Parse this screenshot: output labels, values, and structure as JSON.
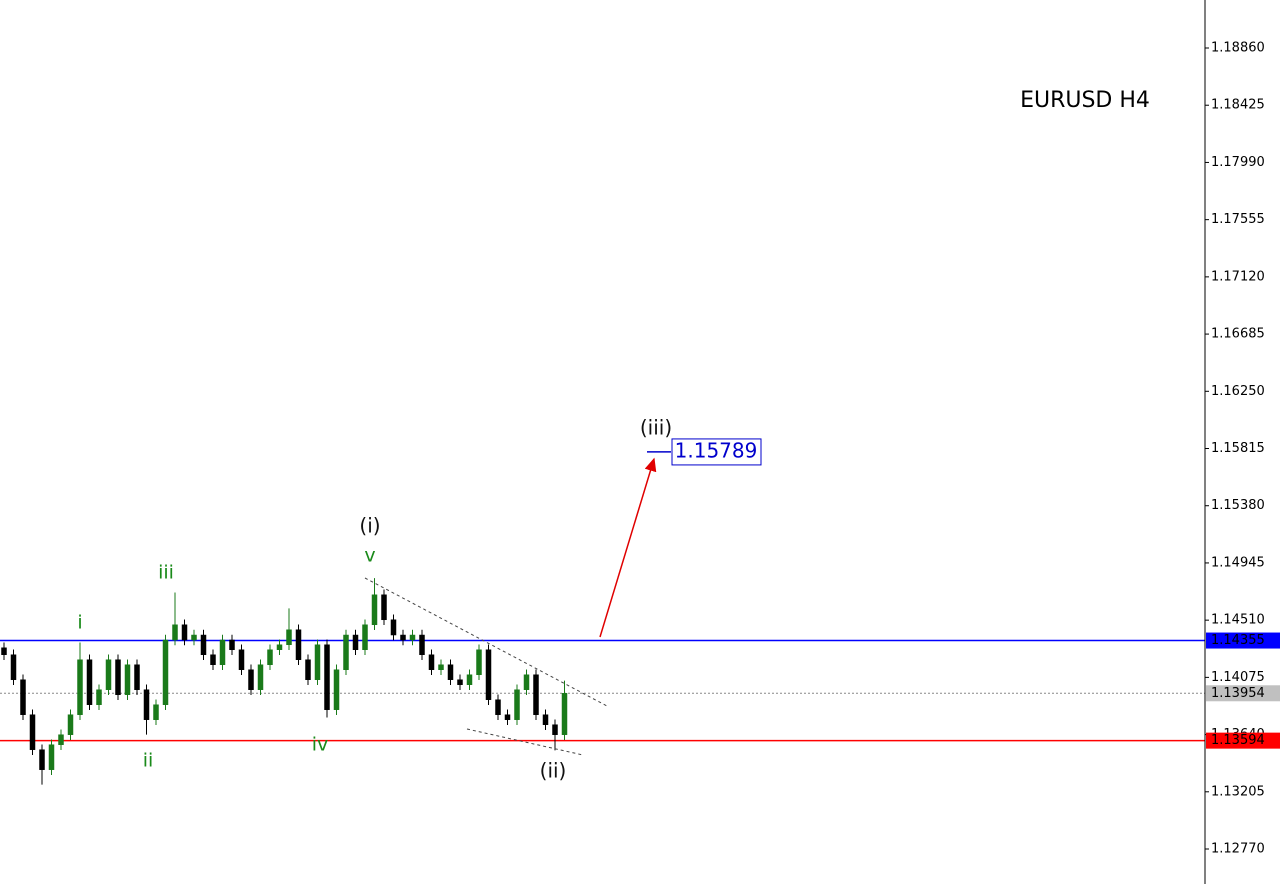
{
  "chart_data": {
    "type": "candlestick",
    "title": "EURUSD H4",
    "ylim": [
      1.12504,
      1.19225
    ],
    "yticks": [
      {
        "value": 1.1886,
        "label": "1.18860"
      },
      {
        "value": 1.18425,
        "label": "1.18425"
      },
      {
        "value": 1.1799,
        "label": "1.17990"
      },
      {
        "value": 1.17555,
        "label": "1.17555"
      },
      {
        "value": 1.1712,
        "label": "1.17120"
      },
      {
        "value": 1.16685,
        "label": "1.16685"
      },
      {
        "value": 1.1625,
        "label": "1.16250"
      },
      {
        "value": 1.15815,
        "label": "1.15815"
      },
      {
        "value": 1.1538,
        "label": "1.15380"
      },
      {
        "value": 1.14945,
        "label": "1.14945"
      },
      {
        "value": 1.1451,
        "label": "1.14510"
      },
      {
        "value": 1.14075,
        "label": "1.14075"
      },
      {
        "value": 1.1364,
        "label": "1.13640"
      },
      {
        "value": 1.13205,
        "label": "1.13205"
      },
      {
        "value": 1.1277,
        "label": "1.12770"
      }
    ],
    "up_color": "#1a7a1a",
    "down_color": "#000000",
    "open": [
      1.143,
      1.14247,
      1.14057,
      1.13791,
      1.13525,
      1.13373,
      1.13563,
      1.13639,
      1.13791,
      1.14209,
      1.13867,
      1.13981,
      1.14209,
      1.13943,
      1.14171,
      1.13981,
      1.13753,
      1.13867,
      1.14359,
      1.14475,
      1.14359,
      1.14397,
      1.14247,
      1.14171,
      1.14359,
      1.14285,
      1.14133,
      1.13981,
      1.14171,
      1.14285,
      1.14323,
      1.14437,
      1.14209,
      1.14057,
      1.14323,
      1.13829,
      1.14133,
      1.14397,
      1.14285,
      1.14475,
      1.14703,
      1.14513,
      1.14397,
      1.14359,
      1.14397,
      1.14247,
      1.14133,
      1.14171,
      1.14057,
      1.14019,
      1.14095,
      1.14285,
      1.13905,
      1.13791,
      1.13753,
      1.13981,
      1.14095,
      1.13791,
      1.13715,
      1.13639
    ],
    "high": [
      1.1434,
      1.14287,
      1.14097,
      1.13831,
      1.13565,
      1.13603,
      1.13679,
      1.13831,
      1.1434,
      1.14249,
      1.14021,
      1.14249,
      1.14249,
      1.14211,
      1.14211,
      1.14021,
      1.13907,
      1.14399,
      1.1472,
      1.14515,
      1.14437,
      1.14437,
      1.14287,
      1.14399,
      1.14399,
      1.14325,
      1.14173,
      1.14211,
      1.14325,
      1.14363,
      1.146,
      1.14477,
      1.14249,
      1.14363,
      1.14363,
      1.14173,
      1.14437,
      1.14437,
      1.14515,
      1.1483,
      1.14743,
      1.14553,
      1.14437,
      1.14437,
      1.14437,
      1.14287,
      1.14211,
      1.14211,
      1.14097,
      1.14135,
      1.14325,
      1.14325,
      1.13945,
      1.13831,
      1.14021,
      1.14135,
      1.14135,
      1.13831,
      1.13755,
      1.1405
    ],
    "low": [
      1.14207,
      1.14017,
      1.13751,
      1.13485,
      1.1326,
      1.13333,
      1.13523,
      1.13599,
      1.13751,
      1.13827,
      1.13827,
      1.13941,
      1.13903,
      1.13903,
      1.13941,
      1.1364,
      1.13713,
      1.13827,
      1.14319,
      1.14319,
      1.14319,
      1.14207,
      1.14131,
      1.14131,
      1.14245,
      1.14093,
      1.13941,
      1.13941,
      1.14131,
      1.14245,
      1.14283,
      1.14169,
      1.14017,
      1.14017,
      1.1377,
      1.13789,
      1.14093,
      1.14245,
      1.14245,
      1.14435,
      1.14473,
      1.14357,
      1.14319,
      1.14319,
      1.14207,
      1.14093,
      1.14093,
      1.14017,
      1.13979,
      1.13979,
      1.14055,
      1.13865,
      1.13751,
      1.13713,
      1.13713,
      1.13941,
      1.13751,
      1.13675,
      1.1352,
      1.13599
    ],
    "close": [
      1.14247,
      1.14057,
      1.13791,
      1.13525,
      1.13373,
      1.13563,
      1.13639,
      1.13791,
      1.14209,
      1.13867,
      1.13981,
      1.14209,
      1.13943,
      1.14171,
      1.13981,
      1.13753,
      1.13867,
      1.14359,
      1.14475,
      1.14359,
      1.14397,
      1.14247,
      1.14171,
      1.14359,
      1.14285,
      1.14133,
      1.13981,
      1.14171,
      1.14285,
      1.14323,
      1.14437,
      1.14209,
      1.14057,
      1.14323,
      1.13829,
      1.14133,
      1.14397,
      1.14285,
      1.14475,
      1.14703,
      1.14513,
      1.14397,
      1.14359,
      1.14397,
      1.14247,
      1.14133,
      1.14171,
      1.14057,
      1.14019,
      1.14095,
      1.14285,
      1.13905,
      1.13791,
      1.13753,
      1.13981,
      1.14095,
      1.13791,
      1.13715,
      1.13639,
      1.13954
    ],
    "levels": [
      {
        "value": 1.14355,
        "color": "#0000ff"
      },
      {
        "value": 1.13594,
        "color": "#ff0000"
      },
      {
        "value": 1.13954,
        "color": "#c0c0c0"
      }
    ],
    "target": {
      "value": 1.15789,
      "color": "#0000cc"
    },
    "wave_labels": {
      "minor": [
        "i",
        "ii",
        "iii",
        "iv",
        "v"
      ],
      "major": [
        "(i)",
        "(ii)",
        "(iii)"
      ]
    }
  }
}
